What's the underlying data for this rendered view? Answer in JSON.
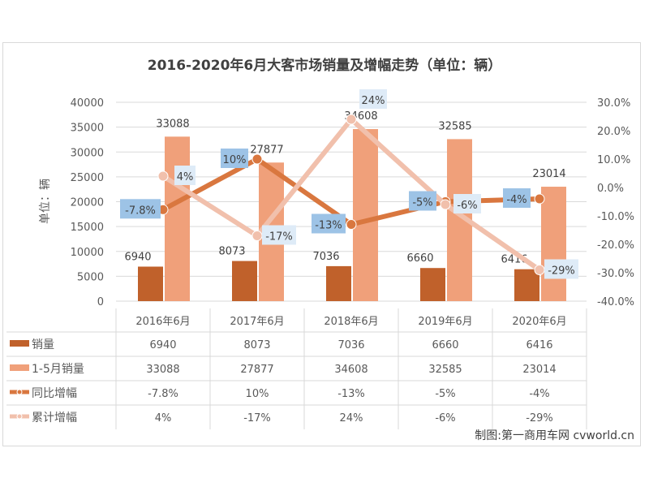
{
  "chart_data": {
    "type": "bar+line",
    "title": "2016-2020年6月大客市场销量及增幅走势（单位：辆）",
    "ylabel": "单位：辆",
    "ylim": [
      0,
      40000
    ],
    "y_ticks": [
      "0",
      "5000",
      "10000",
      "15000",
      "20000",
      "25000",
      "30000",
      "35000",
      "40000"
    ],
    "y2lim": [
      -40,
      30
    ],
    "y2_ticks": [
      "-40.0%",
      "-30.0%",
      "-20.0%",
      "-10.0%",
      "0.0%",
      "10.0%",
      "20.0%",
      "30.0%"
    ],
    "categories": [
      "2016年6月",
      "2017年6月",
      "2018年6月",
      "2019年6月",
      "2020年6月"
    ],
    "grid": true,
    "legend": "data-table-bottom",
    "series": [
      {
        "name": "销量",
        "type": "bar",
        "axis": "left",
        "color": "#c0612b",
        "values": [
          6940,
          8073,
          7036,
          6660,
          6416
        ],
        "labels": [
          "6940",
          "8073",
          "7036",
          "6660",
          "6416"
        ]
      },
      {
        "name": "1-5月销量",
        "type": "bar",
        "axis": "left",
        "color": "#f0a07a",
        "values": [
          33088,
          27877,
          34608,
          32585,
          23014
        ],
        "labels": [
          "33088",
          "27877",
          "34608",
          "32585",
          "23014"
        ]
      },
      {
        "name": "同比增幅",
        "type": "line",
        "axis": "right",
        "color": "#d9773f",
        "values": [
          -7.8,
          10,
          -13,
          -5,
          -4
        ],
        "labels": [
          "-7.8%",
          "10%",
          "-13%",
          "-5%",
          "-4%"
        ]
      },
      {
        "name": "累计增幅",
        "type": "line",
        "axis": "right",
        "color": "#f1c0ac",
        "values": [
          4,
          -17,
          24,
          -6,
          -29
        ],
        "labels": [
          "4%",
          "-17%",
          "24%",
          "-6%",
          "-29%"
        ]
      }
    ],
    "annotation": "制图:第一商用车网 cvworld.cn"
  }
}
